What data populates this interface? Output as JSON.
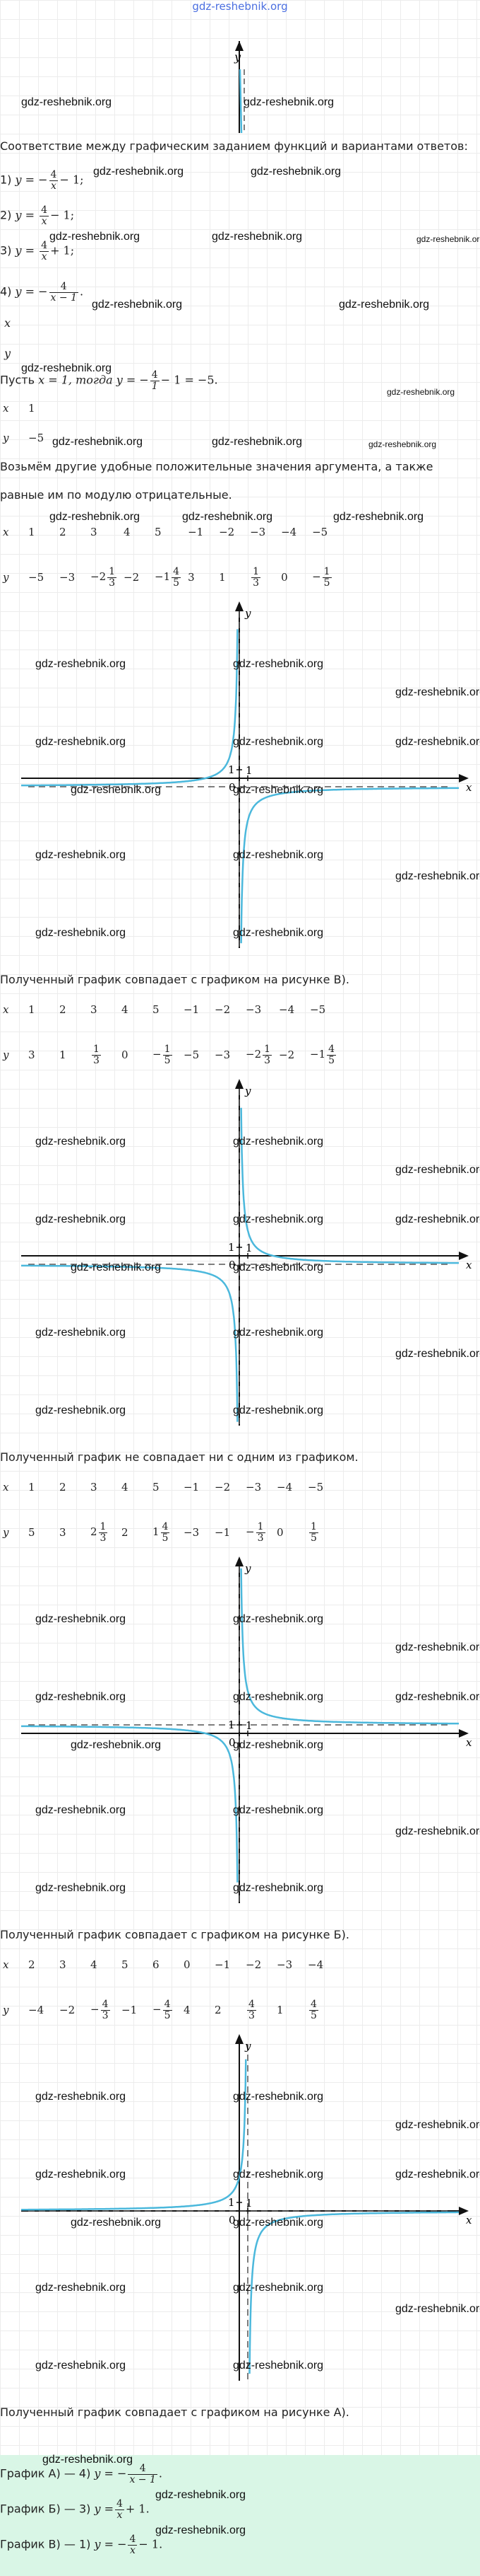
{
  "site": "gdz-reshebnik.org",
  "watermark": "gdz-reshebnik.org",
  "intro": "Соответствие между графическим заданием функций и вариантами ответов:",
  "options": [
    {
      "num": "1)",
      "sign": "−",
      "nu": "4",
      "de": "x",
      "tail": "− 1;"
    },
    {
      "num": "2)",
      "sign": "",
      "nu": "4",
      "de": "x",
      "tail": "− 1;"
    },
    {
      "num": "3)",
      "sign": "",
      "nu": "4",
      "de": "x",
      "tail": "+ 1;"
    },
    {
      "num": "4)",
      "sign": "−",
      "nu": "4",
      "de": "x − 1",
      "tail": "."
    }
  ],
  "let_text": "Пусть",
  "let_eq": "x = 1, тогда y = −",
  "let_frac": {
    "nu": "4",
    "de": "1"
  },
  "let_tail": "− 1 = −5.",
  "other_text_1": "Возьмём другие удобные положительные значения аргумента, а также",
  "other_text_2": "равные им по модулю отрицательные.",
  "small_table": {
    "x_label": "x",
    "y_label": "y",
    "x": "1",
    "y": "−5"
  },
  "tables": [
    {
      "x": [
        "1",
        "2",
        "3",
        "4",
        "5",
        "−1",
        "−2",
        "−3",
        "−4",
        "−5"
      ],
      "y": [
        "−5",
        "−3",
        "−2|1|3",
        "−2",
        "−1|4|5",
        "3",
        "1",
        "|1|3",
        "0",
        "−|1|5"
      ]
    },
    {
      "x": [
        "1",
        "2",
        "3",
        "4",
        "5",
        "−1",
        "−2",
        "−3",
        "−4",
        "−5"
      ],
      "y": [
        "3",
        "1",
        "|1|3",
        "0",
        "−|1|5",
        "−5",
        "−3",
        "−2|1|3",
        "−2",
        "−1|4|5"
      ]
    },
    {
      "x": [
        "1",
        "2",
        "3",
        "4",
        "5",
        "−1",
        "−2",
        "−3",
        "−4",
        "−5"
      ],
      "y": [
        "5",
        "3",
        "2|1|3",
        "2",
        "1|4|5",
        "−3",
        "−1",
        "−|1|3",
        "0",
        "|1|5"
      ]
    },
    {
      "x": [
        "2",
        "3",
        "4",
        "5",
        "6",
        "0",
        "−1",
        "−2",
        "−3",
        "−4"
      ],
      "y": [
        "−4",
        "−2",
        "−|4|3",
        "−1",
        "−|4|5",
        "4",
        "2",
        "|4|3",
        "1",
        "|4|5"
      ]
    }
  ],
  "result_texts": [
    "Полученный график совпадает с графиком на рисунке В).",
    "Полученный график не совпадает ни с одним из графиком.",
    "Полученный график совпадает с графиком на рисунке Б).",
    "Полученный график совпадает с графиком на рисунке А)."
  ],
  "answers": [
    {
      "label": "График А) — 4)",
      "eq": "y = −",
      "nu": "4",
      "de": "x − 1",
      "tail": "."
    },
    {
      "label": "График Б) — 3)",
      "eq": "y =",
      "nu": "4",
      "de": "x",
      "tail": "+ 1."
    },
    {
      "label": "График В) — 1)",
      "eq": "y = −",
      "nu": "4",
      "de": "x",
      "tail": "− 1."
    }
  ],
  "axis": {
    "x_label": "x",
    "y_label": "y",
    "one": "1",
    "zero": "0"
  },
  "plots": [
    {
      "k": -4,
      "h": 0,
      "c": -1
    },
    {
      "k": 4,
      "h": 0,
      "c": -1
    },
    {
      "k": 4,
      "h": 0,
      "c": 1
    },
    {
      "k": -4,
      "h": 1,
      "c": 0
    }
  ],
  "colors": {
    "curve": "#4bb8dc",
    "axis": "#111111",
    "asymptote": "#555555",
    "answer_bg": "#d9f6e6",
    "site_title": "#4a6ee0"
  }
}
